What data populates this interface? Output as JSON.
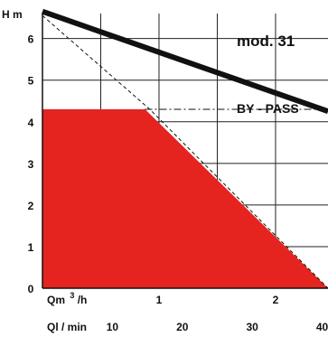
{
  "chart_data": {
    "type": "area",
    "title": "mod. 31",
    "ylabel": "H m",
    "xlabel_primary": "Qm",
    "xlabel_primary_sup": "3",
    "xlabel_primary_unit": "/h",
    "xlabel_secondary": "Ql / min",
    "xlim": [
      0,
      2.45
    ],
    "ylim": [
      0,
      6.6
    ],
    "y_ticks": [
      0,
      1,
      2,
      3,
      4,
      5,
      6
    ],
    "y_tick_labels": [
      "0",
      "1",
      "2",
      "3",
      "4",
      "5",
      "6"
    ],
    "x_ticks": [
      1,
      2
    ],
    "x_tick_labels": [
      "1",
      "2"
    ],
    "x_secondary_ticks": [
      0.6,
      1.2,
      1.8,
      2.4
    ],
    "x_secondary_tick_labels": [
      "10",
      "20",
      "30",
      "40"
    ],
    "grid": true,
    "bypass_label": "BY - PASS",
    "bypass_level": 4.3,
    "series": [
      {
        "role": "pump-curve",
        "color": "#111111",
        "x": [
          0,
          2.45
        ],
        "y": [
          6.65,
          4.25
        ]
      },
      {
        "role": "limit-line",
        "color": "#111111",
        "x": [
          0,
          0.92,
          2.45
        ],
        "y": [
          6.55,
          4.3,
          0
        ]
      },
      {
        "role": "operating-area",
        "color": "#e52420",
        "x": [
          0,
          0.88,
          2.45,
          2.45,
          0
        ],
        "y": [
          4.3,
          4.3,
          0,
          0,
          0
        ]
      }
    ]
  }
}
